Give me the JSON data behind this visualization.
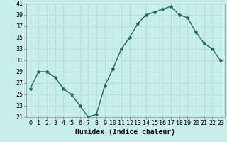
{
  "x": [
    0,
    1,
    2,
    3,
    4,
    5,
    6,
    7,
    8,
    9,
    10,
    11,
    12,
    13,
    14,
    15,
    16,
    17,
    18,
    19,
    20,
    21,
    22,
    23
  ],
  "y": [
    26,
    29,
    29,
    28,
    26,
    25,
    23,
    21,
    21.5,
    26.5,
    29.5,
    33,
    35,
    37.5,
    39,
    39.5,
    40,
    40.5,
    39,
    38.5,
    36,
    34,
    33,
    31
  ],
  "line_color": "#1a6b5a",
  "marker": "*",
  "marker_size": 3,
  "bg_color": "#c8eee8",
  "grid_color": "#aaddcc",
  "xlabel": "Humidex (Indice chaleur)",
  "ylim": [
    21,
    41
  ],
  "xlim_min": -0.5,
  "xlim_max": 23.5,
  "yticks": [
    21,
    23,
    25,
    27,
    29,
    31,
    33,
    35,
    37,
    39,
    41
  ],
  "xticks": [
    0,
    1,
    2,
    3,
    4,
    5,
    6,
    7,
    8,
    9,
    10,
    11,
    12,
    13,
    14,
    15,
    16,
    17,
    18,
    19,
    20,
    21,
    22,
    23
  ],
  "xtick_labels": [
    "0",
    "1",
    "2",
    "3",
    "4",
    "5",
    "6",
    "7",
    "8",
    "9",
    "10",
    "11",
    "12",
    "13",
    "14",
    "15",
    "16",
    "17",
    "18",
    "19",
    "20",
    "21",
    "22",
    "23"
  ],
  "line_width": 1.0,
  "xlabel_fontsize": 7,
  "tick_fontsize": 6
}
